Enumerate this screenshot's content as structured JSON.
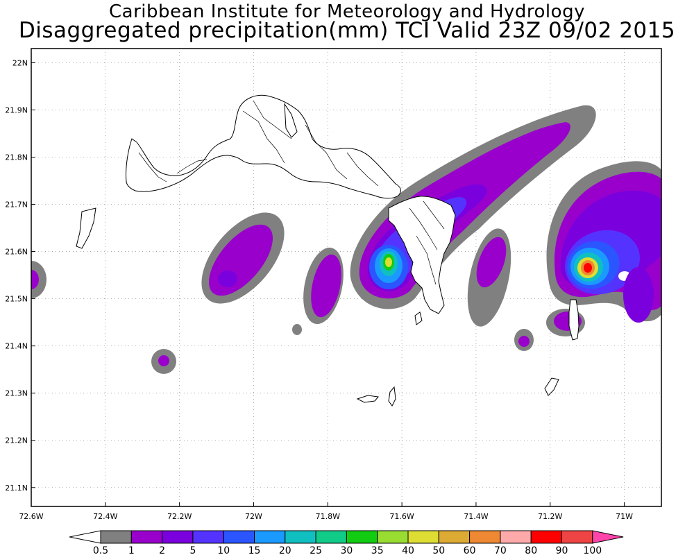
{
  "title_line1": "Caribbean Institute for Meteorology and Hydrology",
  "title_line2": "Disaggregated precipitation(mm) TCI Valid 23Z 09/02 2015",
  "map": {
    "lon_range": [
      -72.6,
      -70.9
    ],
    "lat_range": [
      21.06,
      22.03
    ],
    "grid": true,
    "lon_ticks": [
      "72.6W",
      "72.4W",
      "72.2W",
      "72W",
      "71.8W",
      "71.6W",
      "71.4W",
      "71.2W",
      "71W"
    ],
    "lon_values": [
      -72.6,
      -72.4,
      -72.2,
      -72.0,
      -71.8,
      -71.6,
      -71.4,
      -71.2,
      -71.0
    ],
    "lat_ticks": [
      "22N",
      "21.9N",
      "21.8N",
      "21.7N",
      "21.6N",
      "21.5N",
      "21.4N",
      "21.3N",
      "21.2N",
      "21.1N"
    ],
    "lat_values": [
      22.0,
      21.9,
      21.8,
      21.7,
      21.6,
      21.5,
      21.4,
      21.3,
      21.2,
      21.1
    ]
  },
  "colorbar": {
    "labels": [
      "0.5",
      "1",
      "2",
      "5",
      "10",
      "15",
      "20",
      "25",
      "30",
      "35",
      "40",
      "50",
      "60",
      "70",
      "80",
      "90",
      "100"
    ],
    "colors": [
      "#808080",
      "#9900cc",
      "#7a00dd",
      "#5533ff",
      "#2a55ff",
      "#1a9aff",
      "#10c0c0",
      "#10cc88",
      "#11cc11",
      "#99dd33",
      "#dddd33",
      "#ddaa33",
      "#ee8833",
      "#ffaaaa",
      "#ff0000",
      "#ee4444",
      "#ff44aa"
    ],
    "under_color": "#ffffff",
    "over_color": "#ff33aa"
  },
  "colors": {
    "gray": "#808080",
    "purple": "#9900cc",
    "violet": "#7a00dd",
    "blue": "#5533ff",
    "blue2": "#2a55ff",
    "sky": "#1a9aff",
    "teal": "#10c0c0",
    "green": "#11cc11",
    "yellow": "#dddd33",
    "orange": "#ee8833",
    "red": "#ff0000"
  }
}
